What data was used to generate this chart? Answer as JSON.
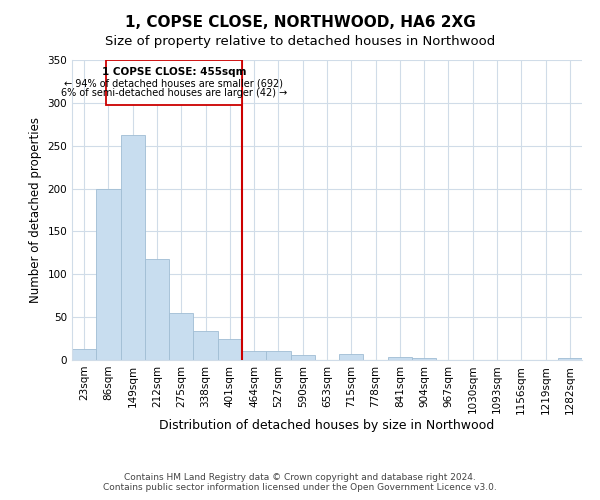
{
  "title": "1, COPSE CLOSE, NORTHWOOD, HA6 2XG",
  "subtitle": "Size of property relative to detached houses in Northwood",
  "xlabel": "Distribution of detached houses by size in Northwood",
  "ylabel": "Number of detached properties",
  "bar_color": "#c8ddef",
  "bar_edge_color": "#a0bdd4",
  "categories": [
    "23sqm",
    "86sqm",
    "149sqm",
    "212sqm",
    "275sqm",
    "338sqm",
    "401sqm",
    "464sqm",
    "527sqm",
    "590sqm",
    "653sqm",
    "715sqm",
    "778sqm",
    "841sqm",
    "904sqm",
    "967sqm",
    "1030sqm",
    "1093sqm",
    "1156sqm",
    "1219sqm",
    "1282sqm"
  ],
  "values": [
    13,
    200,
    262,
    118,
    55,
    34,
    24,
    10,
    10,
    6,
    0,
    7,
    0,
    3,
    2,
    0,
    0,
    0,
    0,
    0,
    2
  ],
  "ylim": [
    0,
    350
  ],
  "yticks": [
    0,
    50,
    100,
    150,
    200,
    250,
    300,
    350
  ],
  "vline_index": 6.5,
  "marker_label": "1 COPSE CLOSE: 455sqm",
  "annotation_line1": "← 94% of detached houses are smaller (692)",
  "annotation_line2": "6% of semi-detached houses are larger (42) →",
  "vline_color": "#cc0000",
  "box_edge_color": "#cc0000",
  "footer1": "Contains HM Land Registry data © Crown copyright and database right 2024.",
  "footer2": "Contains public sector information licensed under the Open Government Licence v3.0.",
  "background_color": "#ffffff",
  "grid_color": "#d0dce8",
  "title_fontsize": 11,
  "subtitle_fontsize": 9.5,
  "xlabel_fontsize": 9,
  "ylabel_fontsize": 8.5,
  "tick_fontsize": 7.5,
  "footer_fontsize": 6.5
}
